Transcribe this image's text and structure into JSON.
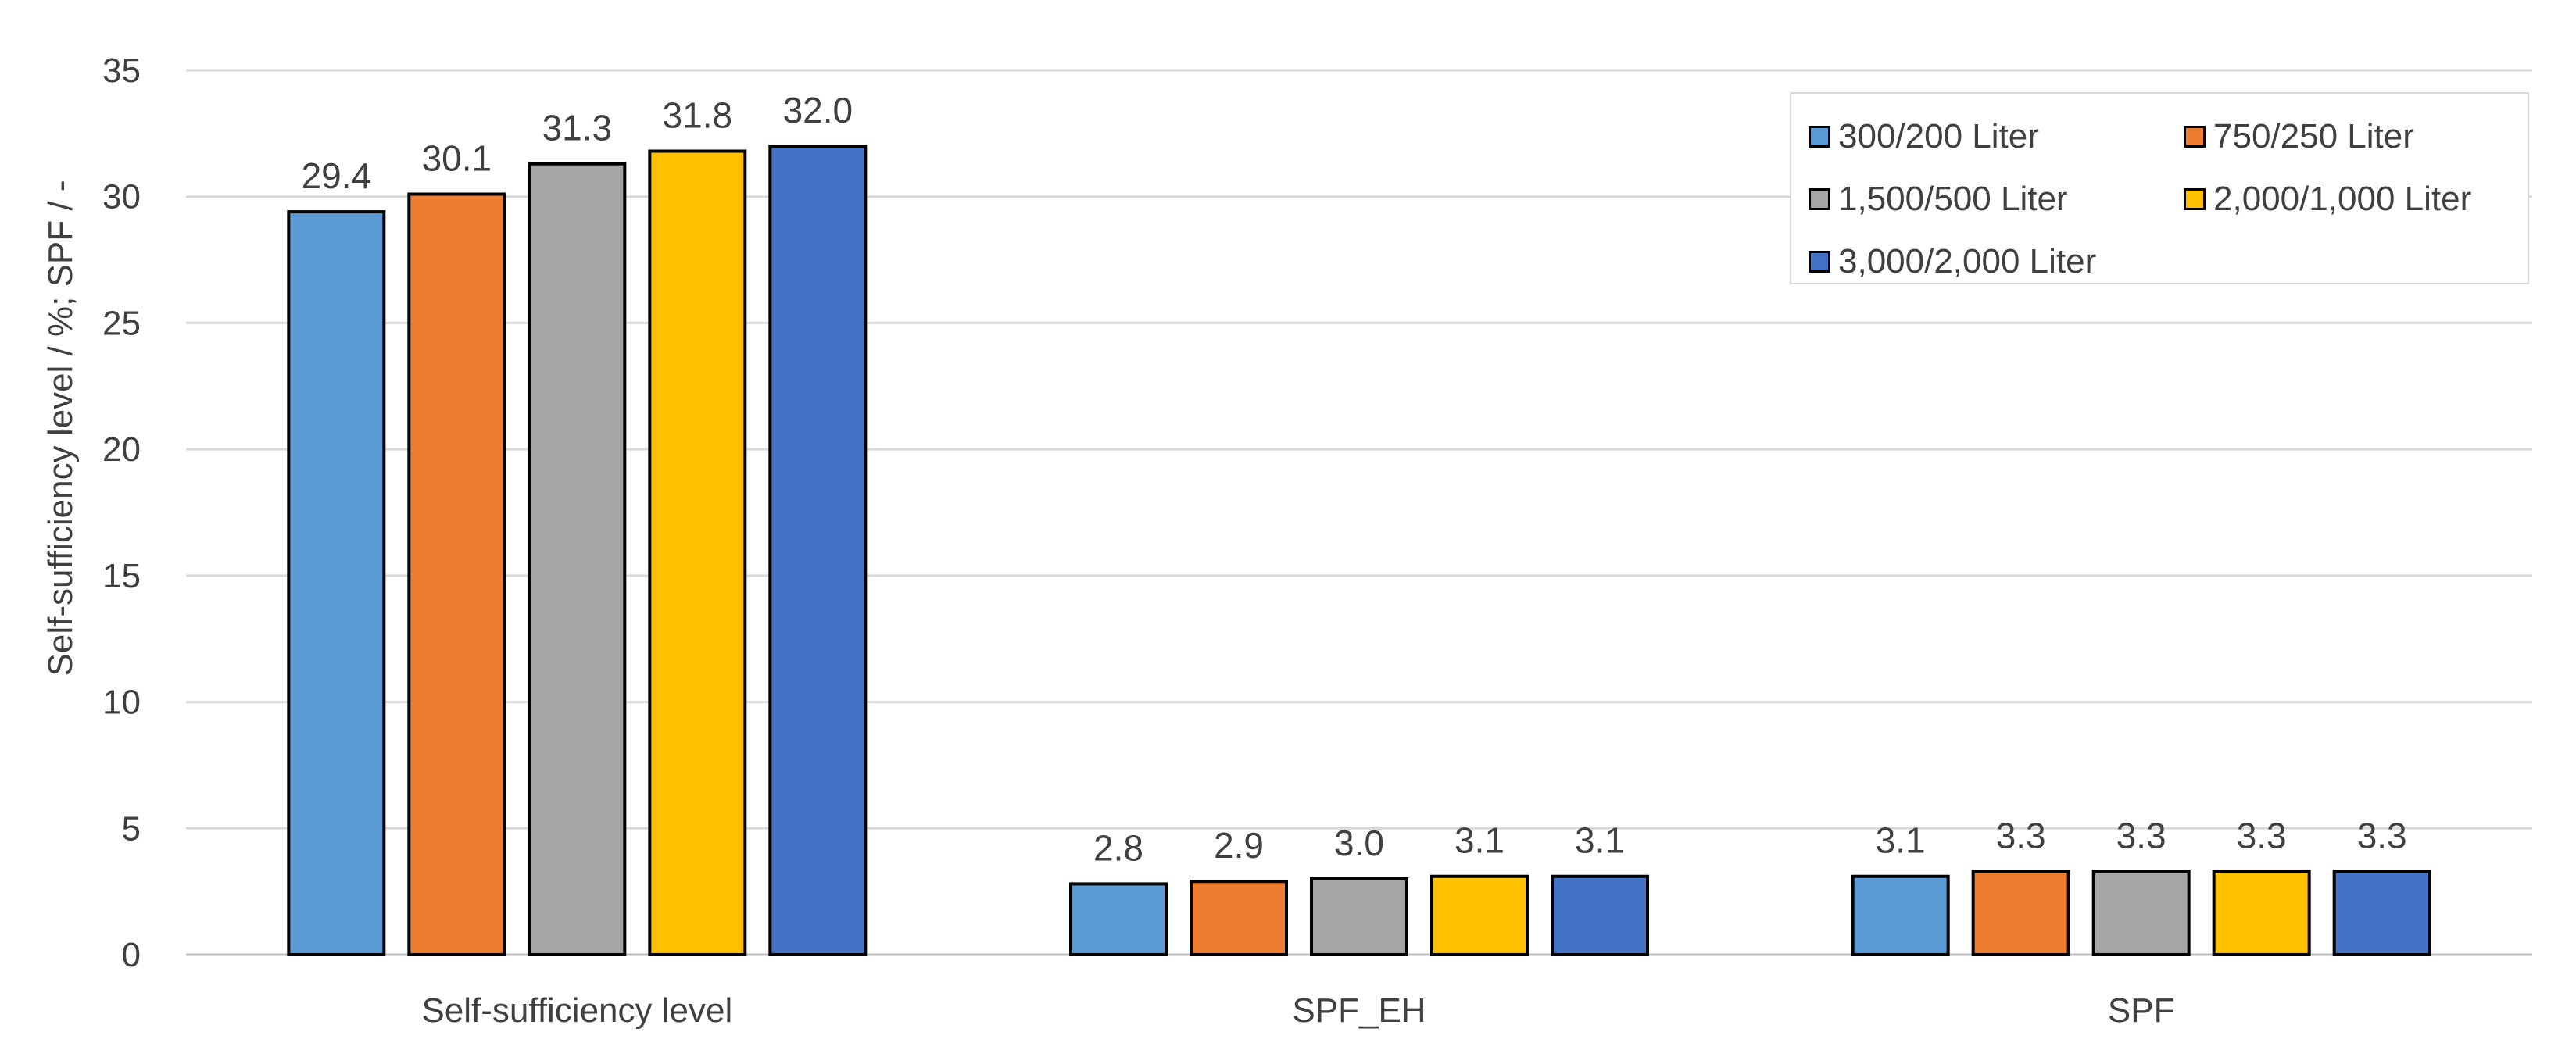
{
  "chart_data": {
    "type": "bar",
    "categories": [
      "Self-sufficiency level",
      "SPF_EH",
      "SPF"
    ],
    "series": [
      {
        "name": "300/200 Liter",
        "color": "#5b9bd5",
        "values": [
          29.4,
          2.8,
          3.1
        ]
      },
      {
        "name": "750/250 Liter",
        "color": "#ed7d31",
        "values": [
          30.1,
          2.9,
          3.3
        ]
      },
      {
        "name": "1,500/500 Liter",
        "color": "#a5a5a5",
        "values": [
          31.3,
          3.0,
          3.3
        ]
      },
      {
        "name": "2,000/1,000 Liter",
        "color": "#ffc000",
        "values": [
          31.8,
          3.1,
          3.3
        ]
      },
      {
        "name": "3,000/2,000 Liter",
        "color": "#4472c4",
        "values": [
          32.0,
          3.1,
          3.3
        ]
      }
    ],
    "ylabel": "Self-sufficiency level / %; SPF / -",
    "xlabel": "",
    "ylim": [
      0,
      35
    ],
    "yticks": [
      0,
      5,
      10,
      15,
      20,
      25,
      30,
      35
    ],
    "grid": true,
    "legend_position": "top-right"
  }
}
